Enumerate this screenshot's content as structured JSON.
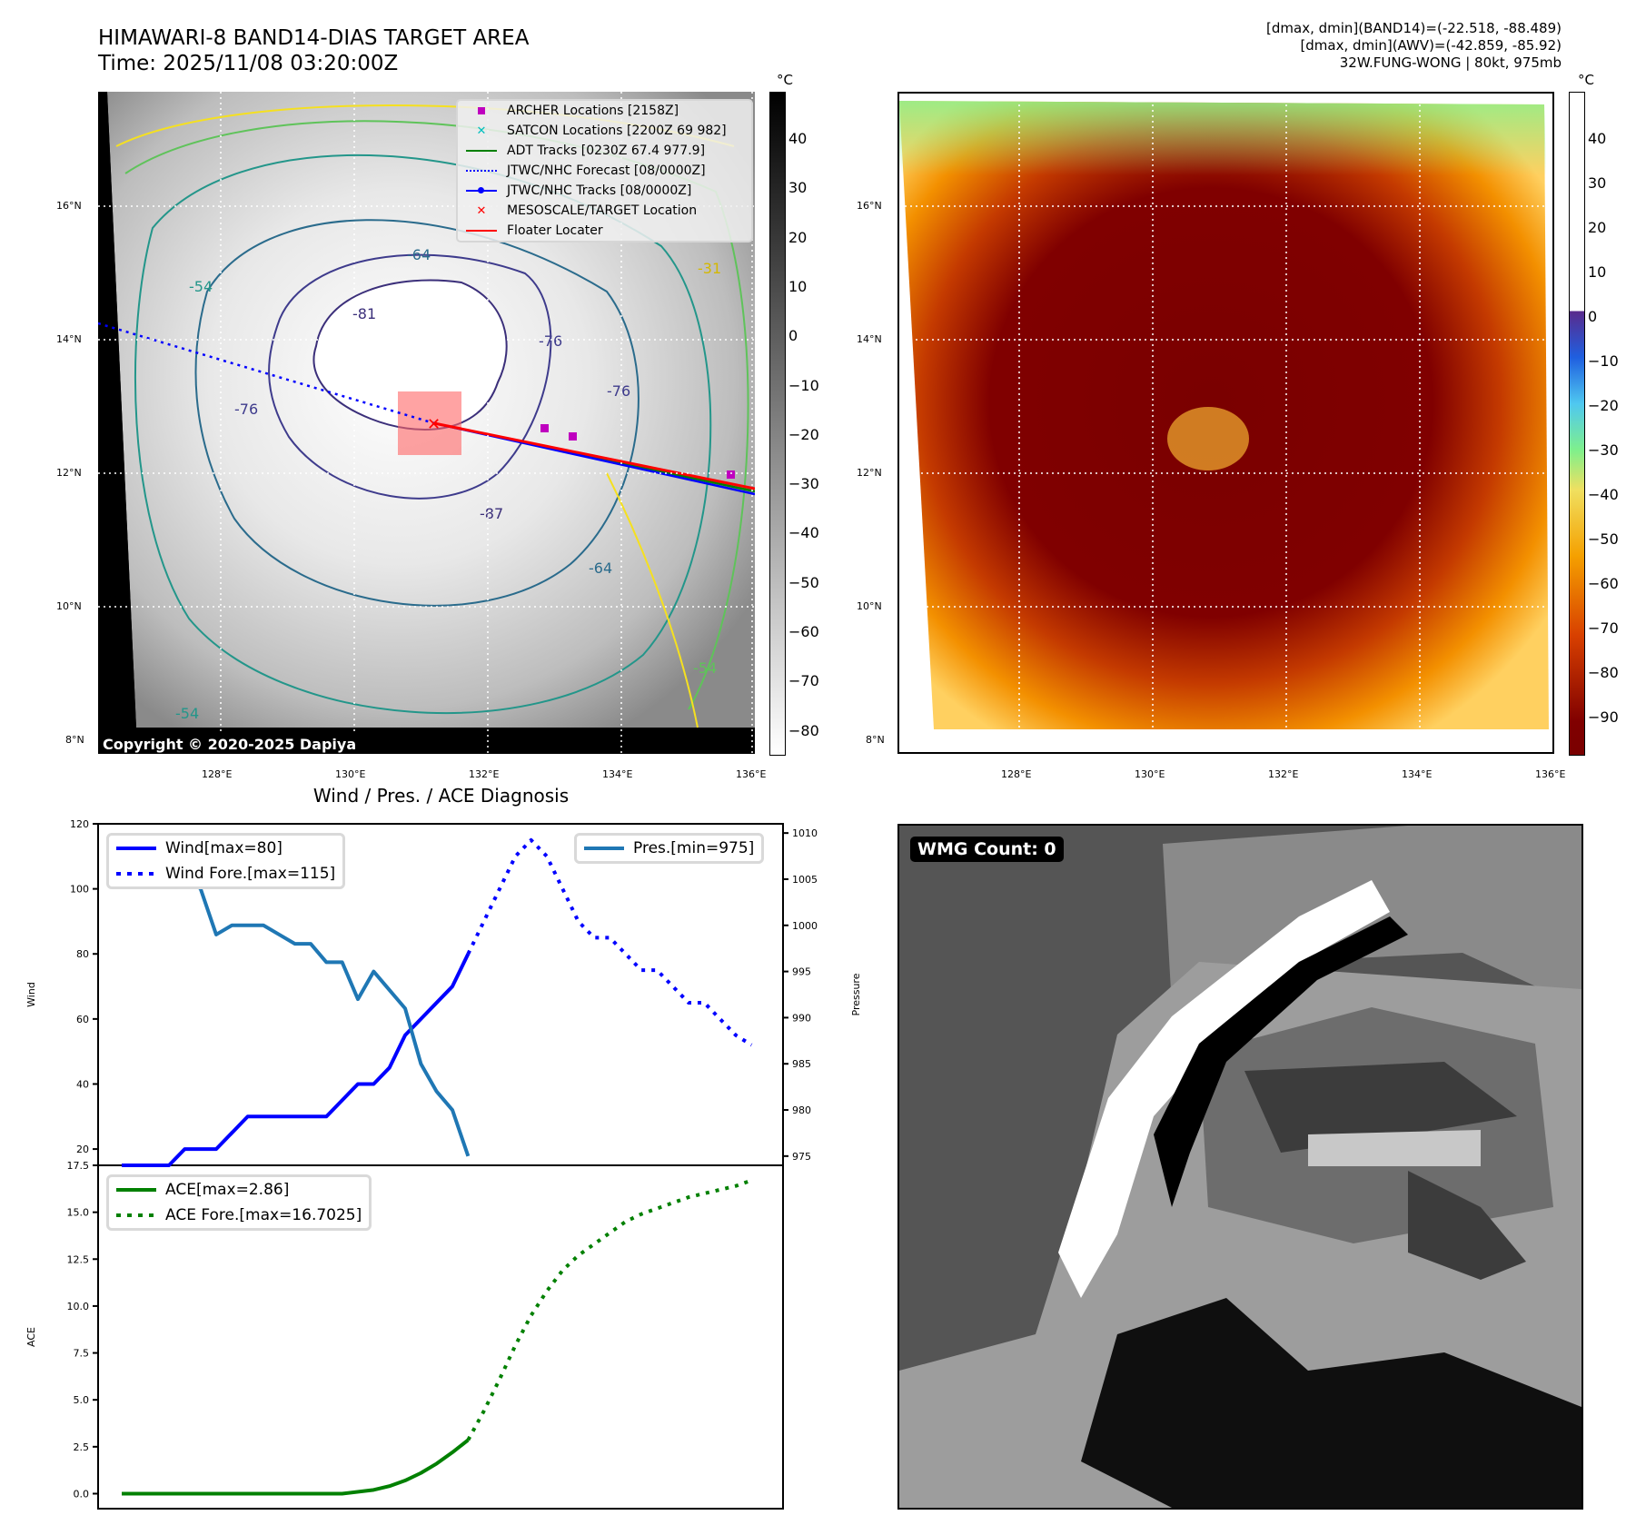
{
  "header": {
    "title_line1": "HIMAWARI-8 BAND14-DIAS TARGET AREA",
    "title_line2": "Time: 2025/11/08 03:20:00Z",
    "info_line1": "[dmax, dmin](BAND14)=(-22.518, -88.489)",
    "info_line2": "[dmax, dmin](AWV)=(-42.859, -85.92)",
    "info_line3": "32W.FUNG-WONG | 80kt, 975mb"
  },
  "map_left": {
    "name": "IR BAND14 with contours",
    "lat_ticks": [
      "16°N",
      "14°N",
      "12°N",
      "10°N",
      "8°N"
    ],
    "lon_ticks": [
      "128°E",
      "130°E",
      "132°E",
      "134°E",
      "136°E"
    ],
    "contour_labels": [
      "-81",
      "-76",
      "-76",
      "-76",
      "-64",
      "-64",
      "-54",
      "-54",
      "-54",
      "-31",
      "-87"
    ],
    "copyright": "Copyright © 2020-2025 Dapiya",
    "legend": [
      {
        "label": "ARCHER Locations [2158Z]",
        "symbol": "square-icon",
        "color": "#bf00bf"
      },
      {
        "label": "SATCON Locations [2200Z 69 982]",
        "symbol": "x-icon",
        "color": "#00bfbf"
      },
      {
        "label": "ADT Tracks [0230Z 67.4 977.9]",
        "symbol": "line-icon",
        "color": "#008000"
      },
      {
        "label": "JTWC/NHC Forecast [08/0000Z]",
        "symbol": "dotted-line-icon",
        "color": "#0000ff"
      },
      {
        "label": "JTWC/NHC Tracks [08/0000Z]",
        "symbol": "line-dot-icon",
        "color": "#0000ff"
      },
      {
        "label": "MESOSCALE/TARGET Location",
        "symbol": "x-icon",
        "color": "#ff0000"
      },
      {
        "label": "Floater Locater",
        "symbol": "line-icon",
        "color": "#ff0000"
      }
    ],
    "colorbar": {
      "unit": "°C",
      "ticks": [
        "40",
        "30",
        "20",
        "10",
        "0",
        "−10",
        "−20",
        "−30",
        "−40",
        "−50",
        "−60",
        "−70",
        "−80"
      ]
    }
  },
  "map_right": {
    "name": "AWV enhanced IR",
    "lat_ticks": [
      "16°N",
      "14°N",
      "12°N",
      "10°N",
      "8°N"
    ],
    "lon_ticks": [
      "128°E",
      "130°E",
      "132°E",
      "134°E",
      "136°E"
    ],
    "colorbar": {
      "unit": "°C",
      "ticks": [
        "40",
        "30",
        "20",
        "10",
        "0",
        "−10",
        "−20",
        "−30",
        "−40",
        "−50",
        "−60",
        "−70",
        "−80",
        "−90"
      ]
    }
  },
  "wmg": {
    "label": "WMG Count: 0"
  },
  "chart_data": [
    {
      "type": "line",
      "title": "Wind / Pres. / ACE Diagnosis",
      "ylabel": "Wind",
      "ylabel_right": "Pressure",
      "ylim": [
        15,
        120
      ],
      "ylim_right": [
        974,
        1011
      ],
      "yticks": [
        "120",
        "100",
        "80",
        "60",
        "40",
        "20"
      ],
      "yticks_right": [
        "1010",
        "1005",
        "1000",
        "995",
        "990",
        "985",
        "980",
        "975"
      ],
      "x": [
        0,
        1,
        2,
        3,
        4,
        5,
        6,
        7,
        8,
        9,
        10,
        11,
        12,
        13,
        14,
        15,
        16,
        17,
        18,
        19,
        20,
        21,
        22,
        23,
        24,
        25,
        26,
        27,
        28,
        29,
        30,
        31,
        32,
        33,
        34,
        35,
        36,
        37,
        38,
        39,
        40
      ],
      "legend_left": [
        "Wind[max=80]",
        "Wind Fore.[max=115]"
      ],
      "legend_right": [
        "Pres.[min=975]"
      ],
      "series": [
        {
          "name": "Wind",
          "axis": "left",
          "style": "solid",
          "color": "#0000ff",
          "x": [
            0,
            1,
            2,
            3,
            4,
            5,
            6,
            7,
            8,
            9,
            10,
            11,
            12,
            13,
            14,
            15,
            16,
            17,
            18,
            19,
            20,
            21,
            22
          ],
          "values": [
            15,
            15,
            15,
            15,
            20,
            20,
            20,
            25,
            30,
            30,
            30,
            30,
            30,
            30,
            35,
            40,
            40,
            45,
            55,
            60,
            65,
            70,
            80
          ]
        },
        {
          "name": "Wind Fore.",
          "axis": "left",
          "style": "dotted",
          "color": "#0000ff",
          "x": [
            22,
            23,
            24,
            25,
            26,
            27,
            28,
            29,
            30,
            31,
            32,
            33,
            34,
            35,
            36,
            37,
            38,
            39,
            40
          ],
          "values": [
            80,
            90,
            100,
            110,
            115,
            110,
            100,
            90,
            85,
            85,
            80,
            75,
            75,
            70,
            65,
            65,
            60,
            55,
            52
          ]
        },
        {
          "name": "Pres.",
          "axis": "right",
          "style": "solid",
          "color": "#1f77b4",
          "x": [
            0,
            1,
            2,
            3,
            4,
            5,
            6,
            7,
            8,
            9,
            10,
            11,
            12,
            13,
            14,
            15,
            16,
            17,
            18,
            19,
            20,
            21,
            22
          ],
          "values": [
            1009,
            1006,
            1006,
            1006,
            1005,
            1004,
            999,
            1000,
            1000,
            1000,
            999,
            998,
            998,
            996,
            996,
            992,
            995,
            993,
            991,
            985,
            982,
            980,
            975
          ]
        }
      ]
    },
    {
      "type": "line",
      "ylabel": "ACE",
      "ylim": [
        -0.8,
        17.5
      ],
      "yticks": [
        "17.5",
        "15.0",
        "12.5",
        "10.0",
        "7.5",
        "5.0",
        "2.5",
        "0.0"
      ],
      "legend": [
        "ACE[max=2.86]",
        "ACE Fore.[max=16.7025]"
      ],
      "series": [
        {
          "name": "ACE",
          "style": "solid",
          "color": "#008000",
          "x": [
            0,
            4,
            8,
            12,
            14,
            16,
            17,
            18,
            19,
            20,
            21,
            22
          ],
          "values": [
            0,
            0,
            0,
            0,
            0,
            0.2,
            0.4,
            0.7,
            1.1,
            1.6,
            2.2,
            2.86
          ]
        },
        {
          "name": "ACE Fore.",
          "style": "dotted",
          "color": "#008000",
          "x": [
            22,
            23,
            24,
            25,
            26,
            27,
            28,
            29,
            30,
            31,
            32,
            33,
            34,
            35,
            36,
            37,
            38,
            39,
            40
          ],
          "values": [
            2.86,
            4.4,
            6.1,
            7.9,
            9.5,
            10.8,
            11.9,
            12.7,
            13.3,
            13.9,
            14.5,
            14.9,
            15.2,
            15.5,
            15.8,
            16.0,
            16.2,
            16.4,
            16.7
          ]
        }
      ]
    }
  ]
}
